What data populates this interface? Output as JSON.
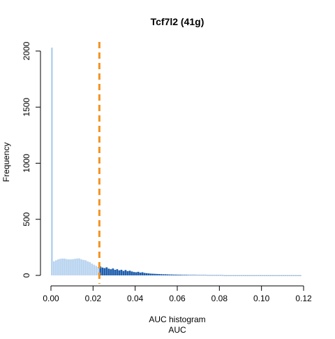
{
  "chart_data": {
    "type": "bar",
    "title": "Tcf7l2 (41g)",
    "xlabel": "AUC",
    "subtitle": "AUC histogram",
    "ylabel": "Frequency",
    "xlim": [
      0,
      0.12
    ],
    "ylim": [
      0,
      2000
    ],
    "x_ticks": [
      "0.00",
      "0.02",
      "0.04",
      "0.06",
      "0.08",
      "0.10",
      "0.12"
    ],
    "y_ticks": [
      "0",
      "500",
      "1000",
      "1500",
      "2000"
    ],
    "threshold": 0.023,
    "bin_width": 0.001,
    "colors": {
      "below_threshold": "#b9d4f0",
      "above_threshold": "#1f5fae",
      "threshold_line": "#f39321"
    },
    "bins": [
      {
        "x": 0.0005,
        "y": 2030
      },
      {
        "x": 0.0015,
        "y": 125
      },
      {
        "x": 0.0025,
        "y": 135
      },
      {
        "x": 0.0035,
        "y": 143
      },
      {
        "x": 0.0045,
        "y": 148
      },
      {
        "x": 0.0055,
        "y": 150
      },
      {
        "x": 0.0065,
        "y": 150
      },
      {
        "x": 0.0075,
        "y": 145
      },
      {
        "x": 0.0085,
        "y": 143
      },
      {
        "x": 0.0095,
        "y": 143
      },
      {
        "x": 0.0105,
        "y": 145
      },
      {
        "x": 0.0115,
        "y": 148
      },
      {
        "x": 0.0125,
        "y": 150
      },
      {
        "x": 0.0135,
        "y": 152
      },
      {
        "x": 0.0145,
        "y": 143
      },
      {
        "x": 0.0155,
        "y": 138
      },
      {
        "x": 0.0165,
        "y": 135
      },
      {
        "x": 0.0175,
        "y": 125
      },
      {
        "x": 0.0185,
        "y": 118
      },
      {
        "x": 0.0195,
        "y": 105
      },
      {
        "x": 0.0205,
        "y": 95
      },
      {
        "x": 0.0215,
        "y": 85
      },
      {
        "x": 0.0225,
        "y": 75
      },
      {
        "x": 0.0235,
        "y": 80
      },
      {
        "x": 0.0245,
        "y": 70
      },
      {
        "x": 0.0255,
        "y": 65
      },
      {
        "x": 0.0265,
        "y": 72
      },
      {
        "x": 0.0275,
        "y": 60
      },
      {
        "x": 0.0285,
        "y": 55
      },
      {
        "x": 0.0295,
        "y": 62
      },
      {
        "x": 0.0305,
        "y": 50
      },
      {
        "x": 0.0315,
        "y": 55
      },
      {
        "x": 0.0325,
        "y": 45
      },
      {
        "x": 0.0335,
        "y": 50
      },
      {
        "x": 0.0345,
        "y": 40
      },
      {
        "x": 0.0355,
        "y": 48
      },
      {
        "x": 0.0365,
        "y": 38
      },
      {
        "x": 0.0375,
        "y": 42
      },
      {
        "x": 0.0385,
        "y": 35
      },
      {
        "x": 0.0395,
        "y": 30
      },
      {
        "x": 0.0405,
        "y": 28
      },
      {
        "x": 0.0415,
        "y": 32
      },
      {
        "x": 0.0425,
        "y": 25
      },
      {
        "x": 0.0435,
        "y": 28
      },
      {
        "x": 0.0445,
        "y": 22
      },
      {
        "x": 0.0455,
        "y": 20
      },
      {
        "x": 0.0465,
        "y": 18
      },
      {
        "x": 0.0475,
        "y": 16
      },
      {
        "x": 0.0485,
        "y": 15
      },
      {
        "x": 0.0495,
        "y": 14
      },
      {
        "x": 0.0505,
        "y": 13
      },
      {
        "x": 0.0515,
        "y": 12
      },
      {
        "x": 0.0525,
        "y": 11
      },
      {
        "x": 0.0535,
        "y": 10
      },
      {
        "x": 0.0545,
        "y": 10
      },
      {
        "x": 0.0555,
        "y": 9
      },
      {
        "x": 0.0565,
        "y": 8
      },
      {
        "x": 0.0575,
        "y": 8
      },
      {
        "x": 0.0585,
        "y": 7
      },
      {
        "x": 0.0595,
        "y": 7
      },
      {
        "x": 0.0605,
        "y": 6
      },
      {
        "x": 0.0615,
        "y": 6
      },
      {
        "x": 0.0625,
        "y": 5
      },
      {
        "x": 0.0635,
        "y": 5
      },
      {
        "x": 0.0645,
        "y": 5
      },
      {
        "x": 0.0655,
        "y": 4
      },
      {
        "x": 0.0665,
        "y": 4
      },
      {
        "x": 0.0675,
        "y": 4
      },
      {
        "x": 0.0685,
        "y": 4
      },
      {
        "x": 0.0695,
        "y": 3
      },
      {
        "x": 0.0705,
        "y": 3
      },
      {
        "x": 0.0715,
        "y": 3
      },
      {
        "x": 0.0725,
        "y": 3
      },
      {
        "x": 0.0735,
        "y": 3
      },
      {
        "x": 0.0745,
        "y": 2
      },
      {
        "x": 0.0755,
        "y": 2
      },
      {
        "x": 0.0765,
        "y": 2
      },
      {
        "x": 0.0775,
        "y": 2
      },
      {
        "x": 0.0785,
        "y": 2
      },
      {
        "x": 0.0795,
        "y": 2
      },
      {
        "x": 0.0805,
        "y": 2
      },
      {
        "x": 0.0815,
        "y": 2
      },
      {
        "x": 0.0825,
        "y": 1
      },
      {
        "x": 0.0835,
        "y": 1
      },
      {
        "x": 0.0845,
        "y": 1
      },
      {
        "x": 0.0855,
        "y": 1
      },
      {
        "x": 0.0865,
        "y": 1
      },
      {
        "x": 0.0875,
        "y": 1
      },
      {
        "x": 0.0885,
        "y": 1
      },
      {
        "x": 0.0895,
        "y": 1
      },
      {
        "x": 0.0905,
        "y": 1
      },
      {
        "x": 0.0915,
        "y": 1
      },
      {
        "x": 0.0925,
        "y": 1
      },
      {
        "x": 0.0935,
        "y": 1
      },
      {
        "x": 0.0945,
        "y": 1
      },
      {
        "x": 0.0955,
        "y": 1
      },
      {
        "x": 0.0965,
        "y": 1
      },
      {
        "x": 0.0975,
        "y": 1
      },
      {
        "x": 0.0985,
        "y": 1
      },
      {
        "x": 0.0995,
        "y": 1
      },
      {
        "x": 0.1005,
        "y": 1
      },
      {
        "x": 0.1015,
        "y": 1
      },
      {
        "x": 0.1025,
        "y": 1
      },
      {
        "x": 0.1035,
        "y": 1
      },
      {
        "x": 0.1045,
        "y": 1
      },
      {
        "x": 0.1055,
        "y": 1
      },
      {
        "x": 0.1065,
        "y": 1
      },
      {
        "x": 0.1075,
        "y": 1
      },
      {
        "x": 0.1085,
        "y": 1
      },
      {
        "x": 0.1095,
        "y": 1
      },
      {
        "x": 0.1105,
        "y": 1
      },
      {
        "x": 0.1115,
        "y": 1
      },
      {
        "x": 0.1125,
        "y": 1
      },
      {
        "x": 0.1135,
        "y": 1
      },
      {
        "x": 0.1145,
        "y": 1
      },
      {
        "x": 0.1155,
        "y": 1
      },
      {
        "x": 0.1165,
        "y": 1
      },
      {
        "x": 0.1175,
        "y": 1
      },
      {
        "x": 0.1185,
        "y": 1
      }
    ]
  }
}
